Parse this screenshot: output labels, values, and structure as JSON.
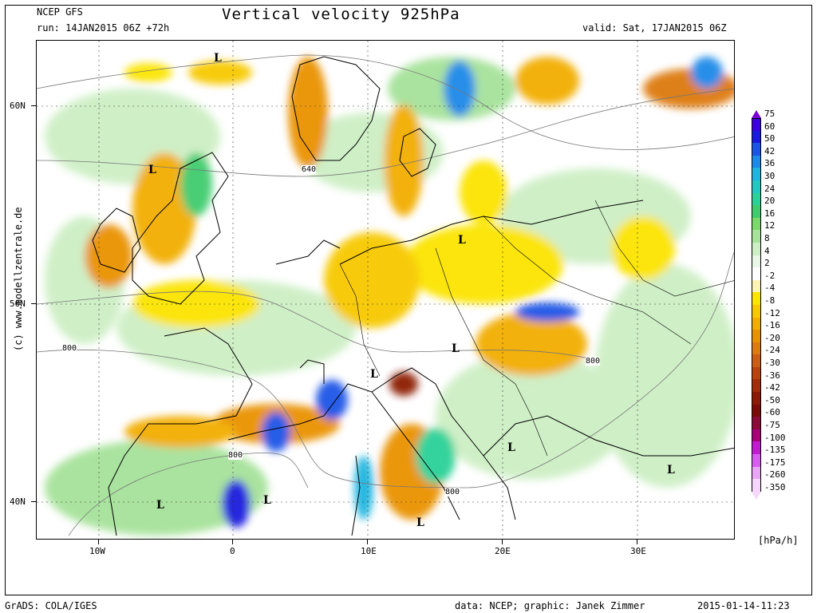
{
  "header": {
    "source": "NCEP GFS",
    "run": "run: 14JAN2015 06Z +72h",
    "title": "Vertical velocity 925hPa",
    "valid": "valid: Sat, 17JAN2015 06Z"
  },
  "axes": {
    "lat_labels": [
      "60N",
      "50N",
      "40N"
    ],
    "lon_labels": [
      "10W",
      "0",
      "10E",
      "20E",
      "30E"
    ]
  },
  "map": {
    "contour_labels": [
      "640",
      "800",
      "800",
      "800",
      "800"
    ],
    "low_markers": [
      "L",
      "L",
      "L",
      "L",
      "L",
      "L",
      "L",
      "L",
      "L",
      "L"
    ]
  },
  "colorbar": {
    "units": "[hPa/h]",
    "labels": [
      "75",
      "60",
      "50",
      "42",
      "36",
      "30",
      "24",
      "20",
      "16",
      "12",
      "8",
      "4",
      "2",
      "-2",
      "-4",
      "-8",
      "-12",
      "-16",
      "-20",
      "-24",
      "-30",
      "-36",
      "-42",
      "-50",
      "-60",
      "-75",
      "-100",
      "-135",
      "-175",
      "-260",
      "-350"
    ],
    "colors": [
      "#7a00d6",
      "#3a00e0",
      "#1a1adf",
      "#1b55e6",
      "#1c8ae8",
      "#1fb5e0",
      "#21c9c2",
      "#2ad198",
      "#40cc6e",
      "#7bd86b",
      "#a6e29a",
      "#cdefc4",
      "#e9f8e6",
      "#ffffff",
      "#fdf3b5",
      "#fbe400",
      "#f7c900",
      "#f2ad00",
      "#e99200",
      "#dd7a10",
      "#cc5d14",
      "#b8430f",
      "#a32d0a",
      "#8c1a06",
      "#7a0b09",
      "#8b0a3a",
      "#a8007a",
      "#c21cd0",
      "#d85cf0",
      "#e9a5f6",
      "#f6d6fb"
    ]
  },
  "footer": {
    "left": "GrADS: COLA/IGES",
    "center": "data: NCEP; graphic: Janek Zimmer",
    "right": "2015-01-14-11:23"
  },
  "credit": "(c)  www.modellzentrale.de"
}
